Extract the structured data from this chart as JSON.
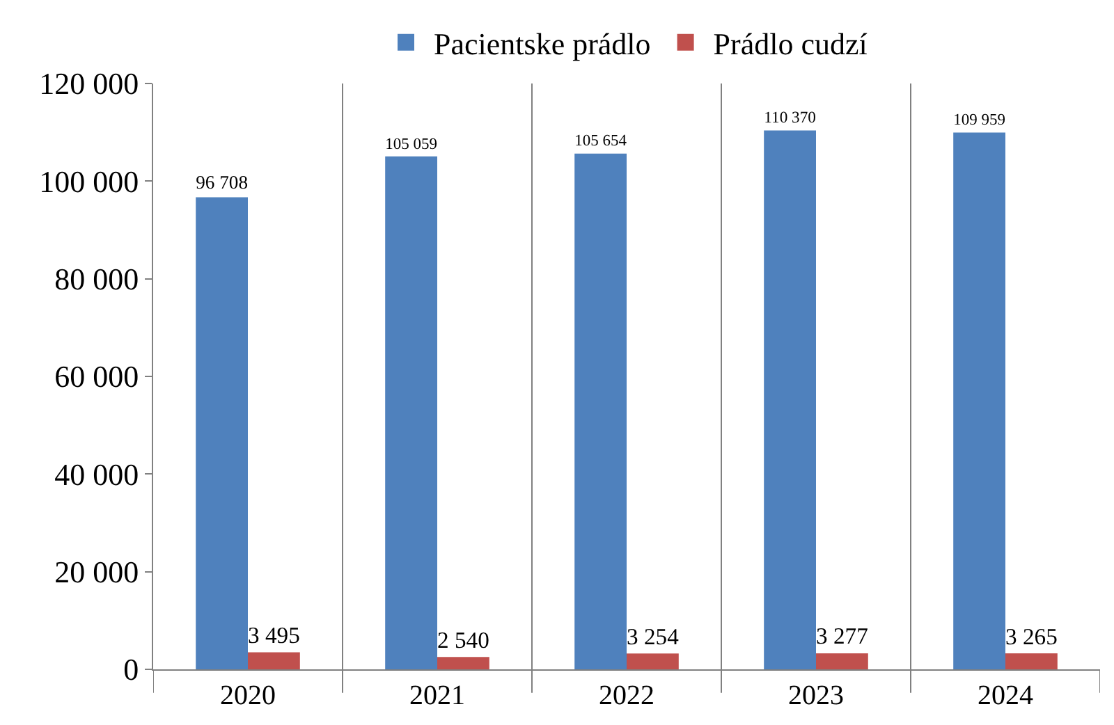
{
  "chart_data": {
    "type": "bar",
    "categories": [
      "2020",
      "2021",
      "2022",
      "2023",
      "2024"
    ],
    "series": [
      {
        "name": "Pacientske prádlo",
        "color": "#4f81bd",
        "values": [
          96708,
          105059,
          105654,
          110370,
          109959
        ],
        "value_labels": [
          "96 708",
          "105 059",
          "105 654",
          "110 370",
          "109 959"
        ]
      },
      {
        "name": "Prádlo cudzí",
        "color": "#c0504d",
        "values": [
          3495,
          2540,
          3254,
          3277,
          3265
        ],
        "value_labels": [
          "3 495",
          "2 540",
          "3 254",
          "3 277",
          "3 265"
        ]
      }
    ],
    "ylim": [
      0,
      120000
    ],
    "yticks": [
      {
        "value": 0,
        "label": "0"
      },
      {
        "value": 20000,
        "label": "20 000"
      },
      {
        "value": 40000,
        "label": "40 000"
      },
      {
        "value": 60000,
        "label": "60 000"
      },
      {
        "value": 80000,
        "label": "80 000"
      },
      {
        "value": 100000,
        "label": "100 000"
      },
      {
        "value": 120000,
        "label": "120 000"
      }
    ],
    "grid": "x",
    "legend": "top"
  }
}
